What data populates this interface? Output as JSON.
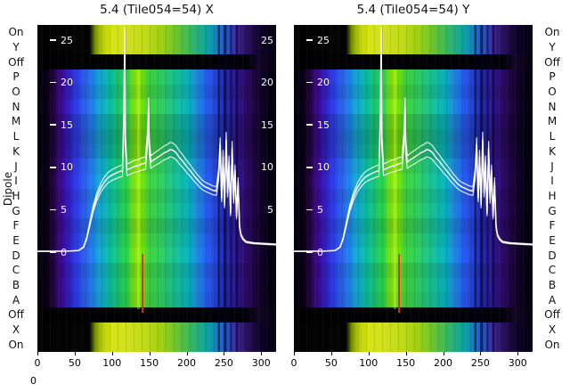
{
  "chart_data": {
    "type": "heatmap",
    "panels": [
      {
        "title": "5.4 (Tile054=54) X",
        "right_ticks": true
      },
      {
        "title": "5.4 (Tile054=54) Y",
        "right_ticks": false
      }
    ],
    "dipole_axis_label": "Dipole",
    "rows": [
      "On",
      "Y",
      "Off",
      "P",
      "O",
      "N",
      "M",
      "L",
      "K",
      "J",
      "I",
      "H",
      "G",
      "F",
      "E",
      "D",
      "C",
      "B",
      "A",
      "Off",
      "X",
      "On"
    ],
    "row_types": [
      "on",
      "on",
      "off",
      "main",
      "main",
      "main",
      "main",
      "main",
      "main",
      "main",
      "main",
      "main",
      "main",
      "main",
      "main",
      "main",
      "main",
      "main",
      "main",
      "off",
      "on",
      "on"
    ],
    "main_row_gains": [
      1.02,
      0.95,
      1.05,
      0.9,
      0.84,
      0.88,
      1.0,
      1.06,
      0.97,
      1.03,
      0.92,
      1.0,
      1.06,
      0.94,
      1.0,
      0.96
    ],
    "power_ticks": [
      25,
      20,
      15,
      10,
      5,
      0
    ],
    "x_ticks": [
      0,
      50,
      100,
      150,
      200,
      250,
      300
    ],
    "x_range": [
      0,
      320
    ],
    "power_range": [
      0,
      27
    ],
    "stray_label": "0",
    "trace_gains": [
      1.0,
      0.93,
      1.07
    ],
    "bandpass_line": {
      "points": [
        [
          0,
          0.1
        ],
        [
          20,
          0.1
        ],
        [
          40,
          0.12
        ],
        [
          55,
          0.18
        ],
        [
          62,
          0.6
        ],
        [
          66,
          1.6
        ],
        [
          70,
          3.2
        ],
        [
          75,
          5.2
        ],
        [
          80,
          6.6
        ],
        [
          85,
          7.6
        ],
        [
          90,
          8.3
        ],
        [
          95,
          8.8
        ],
        [
          100,
          9.1
        ],
        [
          105,
          9.3
        ],
        [
          110,
          9.5
        ],
        [
          114,
          9.6
        ],
        [
          116,
          16.0
        ],
        [
          117,
          26.0
        ],
        [
          118,
          13.0
        ],
        [
          120,
          9.7
        ],
        [
          125,
          9.9
        ],
        [
          130,
          10.1
        ],
        [
          135,
          10.2
        ],
        [
          140,
          10.4
        ],
        [
          145,
          10.5
        ],
        [
          148,
          14.0
        ],
        [
          149,
          17.0
        ],
        [
          150,
          12.5
        ],
        [
          152,
          10.6
        ],
        [
          156,
          10.9
        ],
        [
          160,
          11.1
        ],
        [
          165,
          11.4
        ],
        [
          170,
          11.7
        ],
        [
          175,
          11.9
        ],
        [
          178,
          12.1
        ],
        [
          182,
          12.0
        ],
        [
          186,
          11.7
        ],
        [
          190,
          11.2
        ],
        [
          195,
          10.7
        ],
        [
          200,
          10.1
        ],
        [
          205,
          9.6
        ],
        [
          210,
          9.0
        ],
        [
          215,
          8.5
        ],
        [
          220,
          8.0
        ],
        [
          225,
          7.7
        ],
        [
          230,
          7.5
        ],
        [
          235,
          7.3
        ],
        [
          240,
          7.2
        ],
        [
          243,
          9.2
        ],
        [
          245,
          12.6
        ],
        [
          247,
          6.4
        ],
        [
          249,
          11.2
        ],
        [
          251,
          5.6
        ],
        [
          253,
          13.2
        ],
        [
          255,
          7.0
        ],
        [
          257,
          10.6
        ],
        [
          259,
          4.6
        ],
        [
          261,
          12.2
        ],
        [
          263,
          6.2
        ],
        [
          265,
          9.6
        ],
        [
          267,
          4.2
        ],
        [
          269,
          8.2
        ],
        [
          271,
          3.0
        ],
        [
          273,
          2.0
        ],
        [
          276,
          1.5
        ],
        [
          280,
          1.2
        ],
        [
          290,
          1.05
        ],
        [
          300,
          1.0
        ],
        [
          310,
          0.95
        ],
        [
          320,
          0.9
        ]
      ]
    },
    "colors": {
      "trace": "#ffffff",
      "tick_text": "#ffffff",
      "label_text": "#111111",
      "background": "#ffffff",
      "red_marker": "#d43000"
    }
  }
}
